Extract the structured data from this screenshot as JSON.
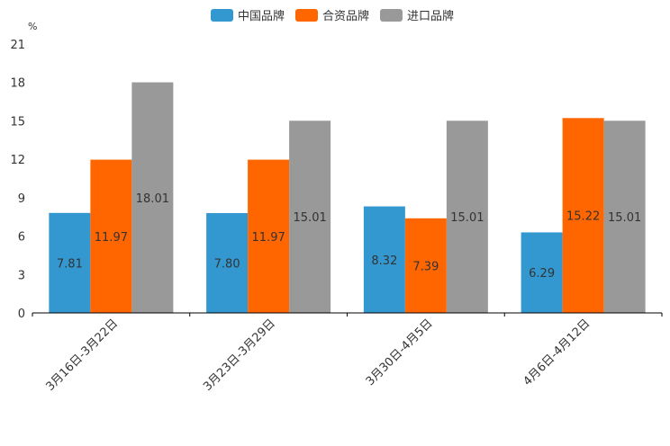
{
  "chart_data": {
    "type": "bar",
    "unit_label": "%",
    "categories": [
      "3月16日-3月22日",
      "3月23日-3月29日",
      "3月30日-4月5日",
      "4月6日-4月12日"
    ],
    "series": [
      {
        "name": "中国品牌",
        "color": "#3498d0",
        "values": [
          7.81,
          7.8,
          8.32,
          6.29
        ]
      },
      {
        "name": "合资品牌",
        "color": "#ff6600",
        "values": [
          11.97,
          11.97,
          7.39,
          15.22
        ]
      },
      {
        "name": "进口品牌",
        "color": "#999999",
        "values": [
          18.01,
          15.01,
          15.01,
          15.01
        ]
      }
    ],
    "y_ticks": [
      0,
      3,
      6,
      9,
      12,
      15,
      18,
      21
    ],
    "ylim": [
      0,
      21
    ],
    "legend_position": "top-center",
    "grid": false
  }
}
